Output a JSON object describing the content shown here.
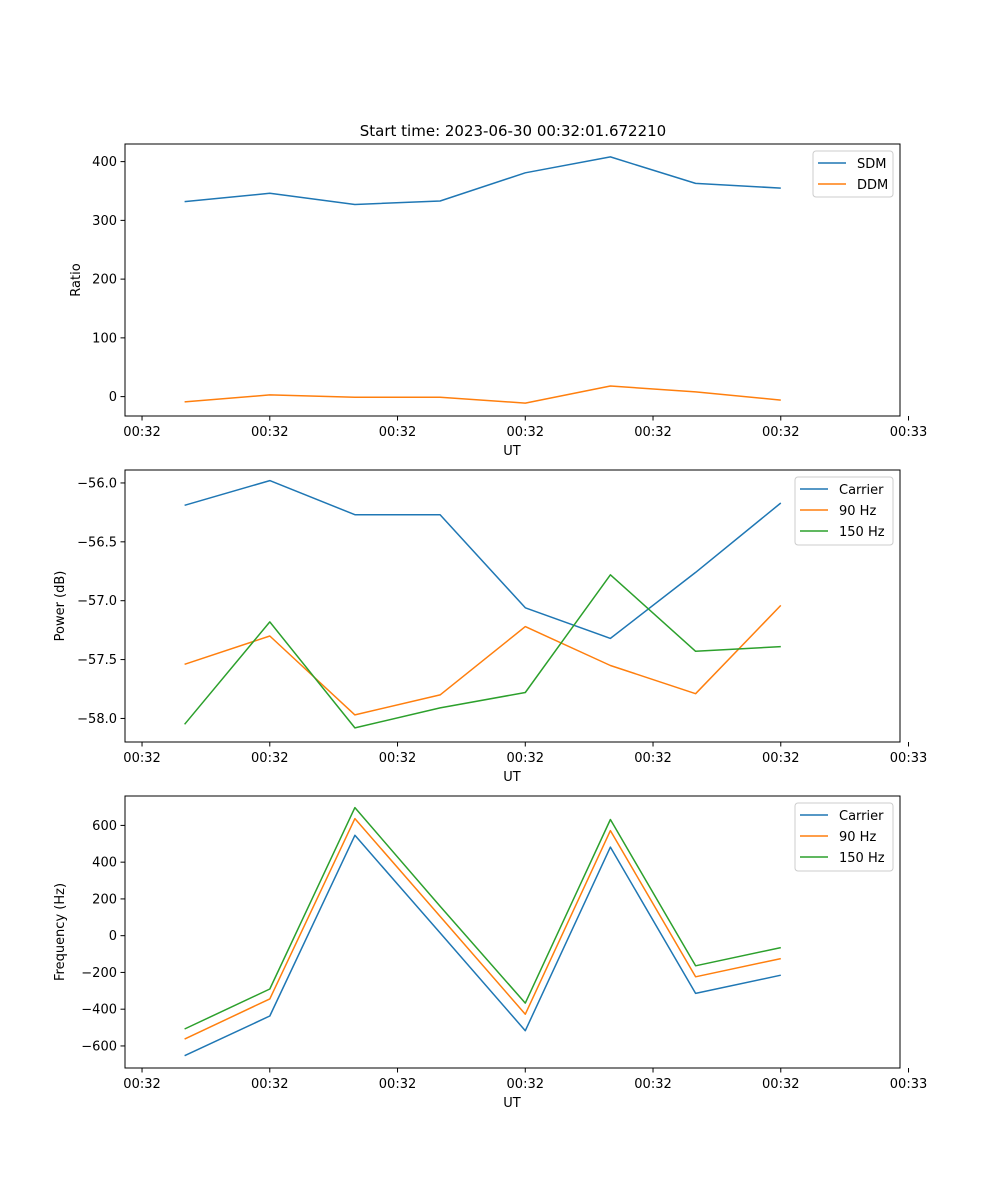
{
  "figure": {
    "title": "Start time: 2023-06-30 00:32:01.672210"
  },
  "colors": {
    "blue": "#1f77b4",
    "orange": "#ff7f0e",
    "green": "#2ca02c",
    "axes": "#000000",
    "legend_border": "#cccccc",
    "background": "#ffffff"
  },
  "chart_data": [
    {
      "type": "line",
      "title": "Start time: 2023-06-30 00:32:01.672210",
      "xlabel": "UT",
      "ylabel": "Ratio",
      "x": [
        1,
        2,
        3,
        4,
        5,
        6,
        7,
        8
      ],
      "xlim": [
        0.3,
        9.4
      ],
      "x_ticks": [
        0.5,
        2.0,
        3.5,
        5.0,
        6.5,
        8.0,
        9.5
      ],
      "x_tick_labels": [
        "00:32",
        "00:32",
        "00:32",
        "00:32",
        "00:32",
        "00:32",
        "00:33"
      ],
      "ylim": [
        -33,
        430
      ],
      "y_ticks": [
        0,
        100,
        200,
        300,
        400
      ],
      "y_tick_labels": [
        "0",
        "100",
        "200",
        "300",
        "400"
      ],
      "grid": false,
      "legend_position": "top-right",
      "series": [
        {
          "name": "SDM",
          "color": "#1f77b4",
          "values": [
            332,
            346,
            327,
            333,
            381,
            408,
            363,
            355
          ]
        },
        {
          "name": "DDM",
          "color": "#ff7f0e",
          "values": [
            -9,
            3,
            -1,
            -1,
            -11,
            18,
            8,
            -6
          ]
        }
      ]
    },
    {
      "type": "line",
      "xlabel": "UT",
      "ylabel": "Power (dB)",
      "x": [
        1,
        2,
        3,
        4,
        5,
        6,
        7,
        8
      ],
      "xlim": [
        0.3,
        9.4
      ],
      "x_ticks": [
        0.5,
        2.0,
        3.5,
        5.0,
        6.5,
        8.0,
        9.5
      ],
      "x_tick_labels": [
        "00:32",
        "00:32",
        "00:32",
        "00:32",
        "00:32",
        "00:32",
        "00:33"
      ],
      "ylim": [
        -58.2,
        -55.89
      ],
      "y_ticks": [
        -56.0,
        -56.5,
        -57.0,
        -57.5,
        -58.0
      ],
      "y_tick_labels": [
        "−56.0",
        "−56.5",
        "−57.0",
        "−57.5",
        "−58.0"
      ],
      "grid": false,
      "legend_position": "top-right",
      "series": [
        {
          "name": "Carrier",
          "color": "#1f77b4",
          "values": [
            -56.19,
            -55.98,
            -56.27,
            -56.27,
            -57.06,
            -57.32,
            -56.76,
            -56.17
          ]
        },
        {
          "name": "90 Hz",
          "color": "#ff7f0e",
          "values": [
            -57.54,
            -57.3,
            -57.97,
            -57.8,
            -57.22,
            -57.55,
            -57.79,
            -57.04
          ]
        },
        {
          "name": "150 Hz",
          "color": "#2ca02c",
          "values": [
            -58.05,
            -57.18,
            -58.08,
            -57.91,
            -57.78,
            -56.78,
            -57.43,
            -57.39
          ]
        }
      ]
    },
    {
      "type": "line",
      "xlabel": "UT",
      "ylabel": "Frequency (Hz)",
      "x": [
        1,
        2,
        3,
        4,
        5,
        6,
        7,
        8
      ],
      "xlim": [
        0.3,
        9.4
      ],
      "x_ticks": [
        0.5,
        2.0,
        3.5,
        5.0,
        6.5,
        8.0,
        9.5
      ],
      "x_tick_labels": [
        "00:32",
        "00:32",
        "00:32",
        "00:32",
        "00:32",
        "00:32",
        "00:33"
      ],
      "ylim": [
        -720,
        760
      ],
      "y_ticks": [
        -600,
        -400,
        -200,
        0,
        200,
        400,
        600
      ],
      "y_tick_labels": [
        "−600",
        "−400",
        "−200",
        "0",
        "200",
        "400",
        "600"
      ],
      "grid": false,
      "legend_position": "top-right",
      "series": [
        {
          "name": "Carrier",
          "color": "#1f77b4",
          "values": [
            -653,
            -437,
            546,
            15,
            -517,
            482,
            -314,
            -215
          ]
        },
        {
          "name": "90 Hz",
          "color": "#ff7f0e",
          "values": [
            -563,
            -344,
            637,
            105,
            -427,
            572,
            -224,
            -125
          ]
        },
        {
          "name": "150 Hz",
          "color": "#2ca02c",
          "values": [
            -508,
            -290,
            697,
            160,
            -367,
            632,
            -164,
            -65
          ]
        }
      ]
    }
  ]
}
